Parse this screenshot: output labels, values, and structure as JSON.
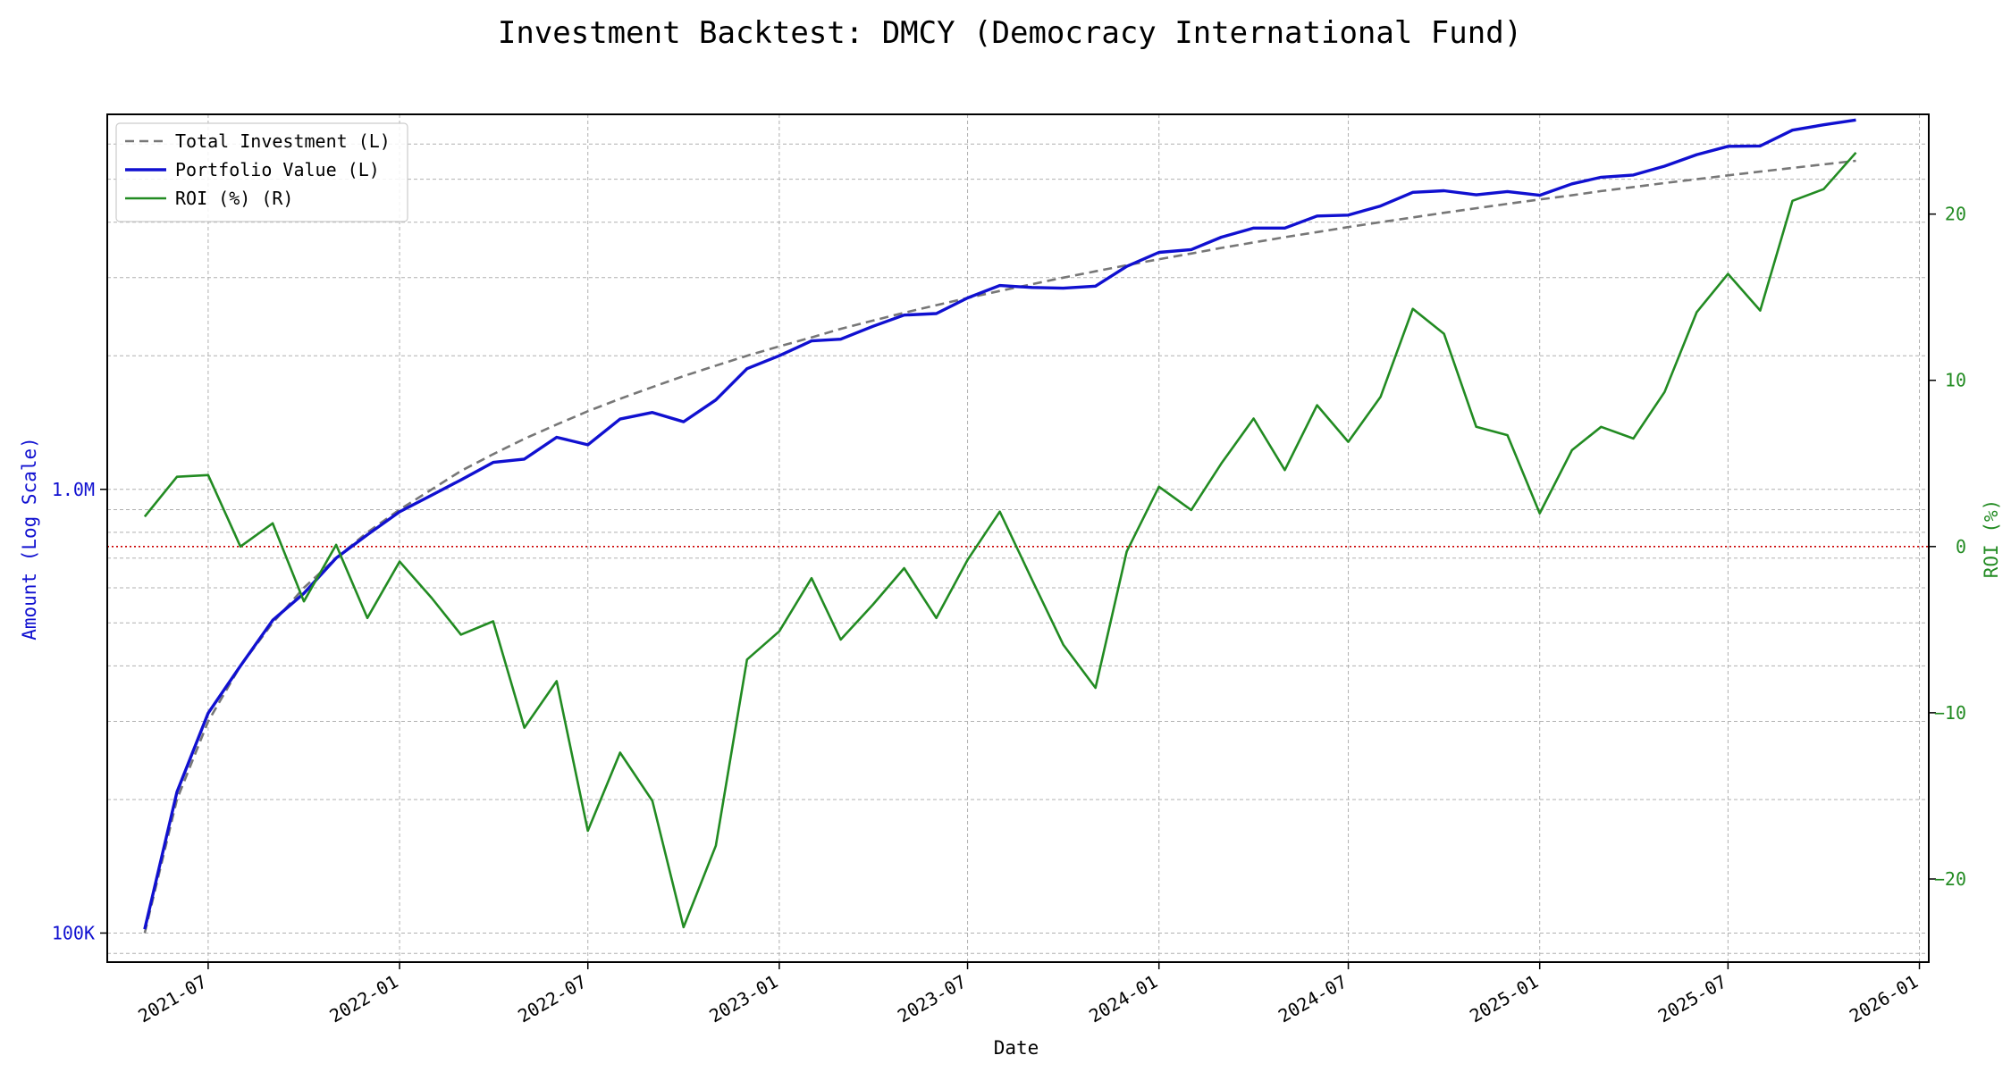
{
  "chart_data": {
    "type": "line",
    "title": "Investment Backtest: DMCY (Democracy International Fund)",
    "xlabel": "Date",
    "ylabel_left": "Amount (Log Scale)",
    "ylabel_right": "ROI (%)",
    "left_scale": "log",
    "left_ylim": [
      86000,
      7000000
    ],
    "right_ylim": [
      -25,
      26
    ],
    "xlim": [
      "2021-03-26",
      "2026-01-10"
    ],
    "x_ticks": [
      "2021-07",
      "2022-01",
      "2022-07",
      "2023-01",
      "2023-07",
      "2024-01",
      "2024-07",
      "2025-01",
      "2025-07",
      "2026-01"
    ],
    "left_ticks": [
      {
        "value": 100000,
        "label": "100K"
      },
      {
        "value": 1000000,
        "label": "1.0M"
      }
    ],
    "right_ticks": [
      -20,
      -10,
      0,
      10,
      20
    ],
    "grid": true,
    "legend_position": "upper-left",
    "reference_line": {
      "axis": "right",
      "value": 0,
      "color": "#cc0000",
      "style": "dotted"
    },
    "colors": {
      "left_axis": "#1010d0",
      "right_axis": "#228b22"
    },
    "x": [
      "2021-05-01",
      "2021-06-01",
      "2021-07-01",
      "2021-08-01",
      "2021-09-01",
      "2021-10-01",
      "2021-11-01",
      "2021-12-01",
      "2022-01-01",
      "2022-02-01",
      "2022-03-01",
      "2022-04-01",
      "2022-05-01",
      "2022-06-01",
      "2022-07-01",
      "2022-08-01",
      "2022-09-01",
      "2022-10-01",
      "2022-11-01",
      "2022-12-01",
      "2023-01-01",
      "2023-02-01",
      "2023-03-01",
      "2023-04-01",
      "2023-05-01",
      "2023-06-01",
      "2023-07-01",
      "2023-08-01",
      "2023-09-01",
      "2023-10-01",
      "2023-11-01",
      "2023-12-01",
      "2024-01-01",
      "2024-02-01",
      "2024-03-01",
      "2024-04-01",
      "2024-05-01",
      "2024-06-01",
      "2024-07-01",
      "2024-08-01",
      "2024-09-01",
      "2024-10-01",
      "2024-11-01",
      "2024-12-01",
      "2025-01-01",
      "2025-02-01",
      "2025-03-01",
      "2025-04-01",
      "2025-05-01",
      "2025-06-01",
      "2025-07-01",
      "2025-08-01",
      "2025-09-01",
      "2025-10-01",
      "2025-11-01"
    ],
    "series": [
      {
        "name": "Total Investment (L)",
        "axis": "left",
        "color": "#777777",
        "style": "dashed",
        "values": [
          100000,
          200000,
          300000,
          400000,
          500000,
          600000,
          700000,
          800000,
          900000,
          1000000,
          1100000,
          1200000,
          1300000,
          1400000,
          1500000,
          1600000,
          1700000,
          1800000,
          1900000,
          2000000,
          2100000,
          2200000,
          2300000,
          2400000,
          2500000,
          2600000,
          2700000,
          2800000,
          2900000,
          3000000,
          3100000,
          3200000,
          3300000,
          3400000,
          3500000,
          3600000,
          3700000,
          3800000,
          3900000,
          4000000,
          4100000,
          4200000,
          4300000,
          4400000,
          4500000,
          4600000,
          4700000,
          4800000,
          4900000,
          5000000,
          5100000,
          5200000,
          5300000,
          5400000,
          5500000
        ]
      },
      {
        "name": "Portfolio Value (L)",
        "axis": "left",
        "color": "#1010d0",
        "style": "solid",
        "values": [
          102000,
          208000,
          313000,
          400000,
          507000,
          583000,
          700000,
          790000,
          890000,
          970000,
          1050000,
          1150000,
          1170000,
          1310000,
          1260000,
          1440000,
          1490000,
          1420000,
          1590000,
          1870000,
          2000000,
          2160000,
          2180000,
          2330000,
          2470000,
          2490000,
          2700000,
          2880000,
          2850000,
          2840000,
          2870000,
          3180000,
          3420000,
          3470000,
          3700000,
          3880000,
          3880000,
          4130000,
          4150000,
          4350000,
          4670000,
          4710000,
          4610000,
          4690000,
          4600000,
          4880000,
          5050000,
          5110000,
          5350000,
          5680000,
          5930000,
          5940000,
          6450000,
          6630000,
          6800000
        ]
      },
      {
        "name": "ROI (%) (R)",
        "axis": "right",
        "color": "#228b22",
        "style": "solid",
        "values": [
          1.8,
          4.2,
          4.3,
          0.0,
          1.4,
          -3.3,
          0.1,
          -4.3,
          -0.9,
          -3.1,
          -5.3,
          -4.5,
          -10.9,
          -8.1,
          -17.1,
          -12.4,
          -15.3,
          -22.9,
          -18.0,
          -6.8,
          -5.1,
          -1.9,
          -5.6,
          -3.5,
          -1.3,
          -4.3,
          -0.8,
          2.1,
          -2.0,
          -5.9,
          -8.5,
          -0.3,
          3.6,
          2.2,
          5.0,
          7.7,
          4.6,
          8.5,
          6.3,
          9.0,
          14.3,
          12.8,
          7.2,
          6.7,
          2.0,
          5.8,
          7.2,
          6.5,
          9.3,
          14.1,
          16.4,
          14.2,
          20.8,
          21.5,
          23.7
        ]
      }
    ]
  }
}
